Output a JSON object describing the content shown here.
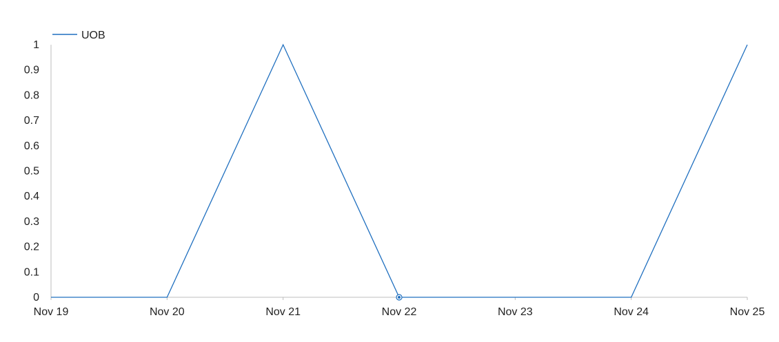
{
  "chart_data": {
    "type": "line",
    "x": [
      "Nov 19",
      "Nov 20",
      "Nov 21",
      "Nov 22",
      "Nov 23",
      "Nov 24",
      "Nov 25"
    ],
    "series": [
      {
        "name": "UOB",
        "values": [
          0,
          0,
          1,
          0,
          0,
          0,
          1
        ],
        "color": "#1f6fbf"
      }
    ],
    "yticks": [
      "0",
      "0.1",
      "0.2",
      "0.3",
      "0.4",
      "0.5",
      "0.6",
      "0.7",
      "0.8",
      "0.9",
      "1"
    ],
    "ylim": [
      0,
      1
    ],
    "highlighted_point_index": 3,
    "legend_position": "top-left",
    "grid": false,
    "title": "",
    "xlabel": "",
    "ylabel": "",
    "colors": {
      "series": "#1f6fbf",
      "axis": "#bdbdbd",
      "text": "#222222"
    }
  }
}
